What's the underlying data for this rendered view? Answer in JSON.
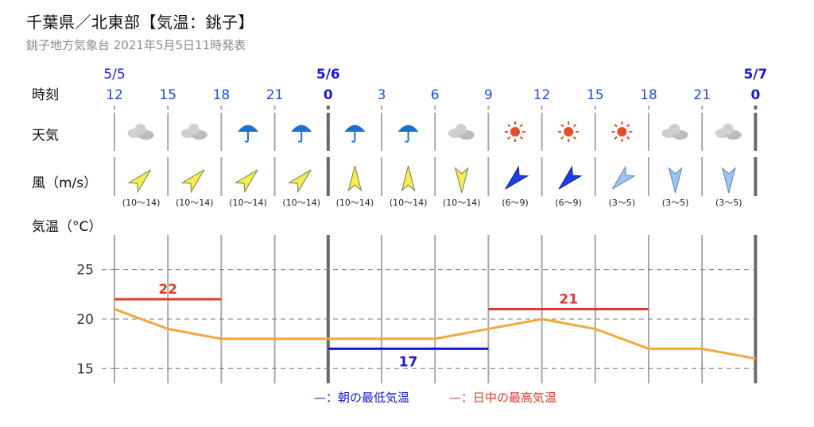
{
  "title": "千葉県／北東部【気温：銚子】",
  "subtitle": "銚子地方気象台 2021年5月5日11時発表",
  "row_labels": {
    "time": "時刻",
    "weather": "天気",
    "wind": "風（m/s）",
    "temperature": "気温（°C）"
  },
  "dates": [
    {
      "index": 0,
      "label": "5/5"
    },
    {
      "index": 4,
      "label": "5/6"
    },
    {
      "index": 12,
      "label": "5/7"
    }
  ],
  "times": [
    "12",
    "15",
    "18",
    "21",
    "0",
    "3",
    "6",
    "9",
    "12",
    "15",
    "18",
    "21",
    "0"
  ],
  "weather": [
    "cloud-icon",
    "cloud-icon",
    "umbrella-icon",
    "umbrella-icon",
    "umbrella-icon",
    "umbrella-icon",
    "cloud-icon",
    "sun-icon",
    "sun-icon",
    "sun-icon",
    "cloud-icon",
    "cloud-icon"
  ],
  "wind": [
    {
      "dir": "SW",
      "range": "(10〜14)",
      "level": "yellow"
    },
    {
      "dir": "SW",
      "range": "(10〜14)",
      "level": "yellow"
    },
    {
      "dir": "SW",
      "range": "(10〜14)",
      "level": "yellow"
    },
    {
      "dir": "SW",
      "range": "(10〜14)",
      "level": "yellow"
    },
    {
      "dir": "S",
      "range": "(10〜14)",
      "level": "yellow"
    },
    {
      "dir": "S",
      "range": "(10〜14)",
      "level": "yellow"
    },
    {
      "dir": "N",
      "range": "(10〜14)",
      "level": "yellow"
    },
    {
      "dir": "NE",
      "range": "(6〜9)",
      "level": "blue"
    },
    {
      "dir": "NE",
      "range": "(6〜9)",
      "level": "blue"
    },
    {
      "dir": "NE",
      "range": "(3〜5)",
      "level": "lightblue"
    },
    {
      "dir": "N",
      "range": "(3〜5)",
      "level": "lightblue"
    },
    {
      "dir": "N",
      "range": "(3〜5)",
      "level": "lightblue"
    }
  ],
  "colors": {
    "date_blue": "#1a1ad6",
    "tick_blue": "#1d4fd8",
    "temp_line": "#f0a93a",
    "max_red": "#e03a2e",
    "min_blue": "#1a1ad6",
    "wind_yellow": "#f5ee4e",
    "wind_blue": "#1f3fe0",
    "wind_lightblue": "#9ec4f2",
    "umbrella": "#1f6fd1",
    "sun": "#e84b2a",
    "cloud": "#cfcfcf"
  },
  "chart_data": {
    "type": "line",
    "x": [
      "5/5 12",
      "15",
      "18",
      "21",
      "5/6 0",
      "3",
      "6",
      "9",
      "12",
      "15",
      "18",
      "21",
      "5/7 0"
    ],
    "series": [
      {
        "values": [
          21,
          19,
          18,
          18,
          18,
          18,
          18,
          19,
          20,
          19,
          17,
          17,
          16
        ]
      }
    ],
    "ylim": [
      13.5,
      28.5
    ],
    "yticks": [
      15,
      20,
      25
    ],
    "grid": true,
    "max_temp": {
      "value": "22",
      "numeric": 22,
      "from": 0,
      "to": 2
    },
    "max_temp_2": {
      "value": "21",
      "numeric": 21,
      "from": 7,
      "to": 10
    },
    "min_temp": {
      "value": "17",
      "numeric": 17,
      "from": 4,
      "to": 7
    },
    "legend": {
      "min_label": "—：朝の最低気温",
      "max_label": "—：日中の最高気温"
    }
  }
}
